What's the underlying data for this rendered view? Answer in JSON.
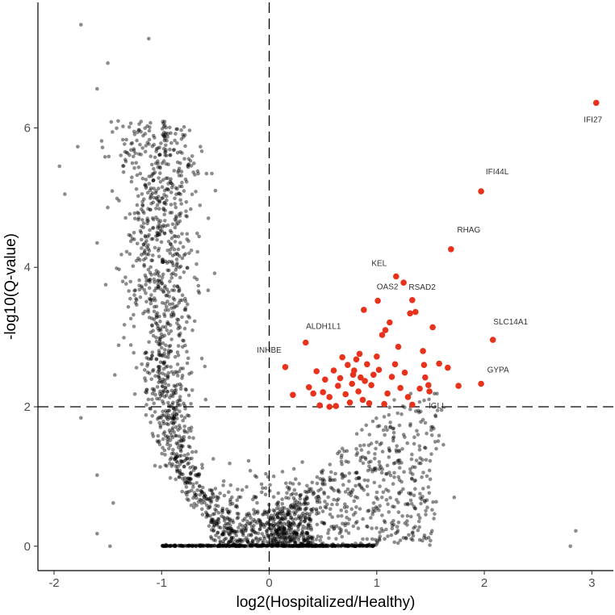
{
  "chart_data": {
    "type": "scatter",
    "title": "",
    "xlabel": "log2(Hospitalized/Healthy)",
    "ylabel": "-log10(Q-value)",
    "xlim": [
      -2.15,
      3.2
    ],
    "ylim": [
      -0.35,
      7.8
    ],
    "x_ticks": [
      -2,
      -1,
      0,
      1,
      2,
      3
    ],
    "y_ticks": [
      0,
      2,
      4,
      6
    ],
    "grid": false,
    "thresholds": {
      "x": 0,
      "y": 2
    },
    "colors": {
      "significant": "#e8321c",
      "other": "#000000",
      "other_opacity": 0.45
    },
    "labeled_genes": [
      {
        "name": "IFI27",
        "x": 3.04,
        "y": 6.36
      },
      {
        "name": "IFI44L",
        "x": 1.97,
        "y": 5.09
      },
      {
        "name": "RHAG",
        "x": 1.69,
        "y": 4.26
      },
      {
        "name": "KEL",
        "x": 1.18,
        "y": 3.87
      },
      {
        "name": "RSAD2",
        "x": 1.25,
        "y": 3.78
      },
      {
        "name": "OAS2",
        "x": 1.01,
        "y": 3.52
      },
      {
        "name": "ALDH1L1",
        "x": 0.34,
        "y": 2.92
      },
      {
        "name": "SLC14A1",
        "x": 2.08,
        "y": 2.96
      },
      {
        "name": "INHBE",
        "x": 0.15,
        "y": 2.57
      },
      {
        "name": "GYPA",
        "x": 1.97,
        "y": 2.33
      },
      {
        "name": "IGLL",
        "x": 1.57,
        "y": 2.0
      }
    ],
    "significant_points": [
      [
        0.22,
        2.17
      ],
      [
        0.37,
        2.28
      ],
      [
        0.41,
        2.19
      ],
      [
        0.44,
        2.51
      ],
      [
        0.47,
        2.02
      ],
      [
        0.5,
        2.21
      ],
      [
        0.52,
        2.39
      ],
      [
        0.56,
        2.14
      ],
      [
        0.6,
        2.52
      ],
      [
        0.62,
        2.01
      ],
      [
        0.64,
        2.3
      ],
      [
        0.66,
        2.41
      ],
      [
        0.68,
        2.71
      ],
      [
        0.71,
        2.18
      ],
      [
        0.73,
        2.6
      ],
      [
        0.75,
        2.06
      ],
      [
        0.77,
        2.33
      ],
      [
        0.79,
        2.52
      ],
      [
        0.81,
        2.68
      ],
      [
        0.83,
        2.22
      ],
      [
        0.85,
        2.42
      ],
      [
        0.87,
        2.1
      ],
      [
        0.89,
        2.37
      ],
      [
        0.91,
        2.61
      ],
      [
        0.88,
        3.39
      ],
      [
        0.93,
        2.05
      ],
      [
        0.95,
        2.31
      ],
      [
        0.97,
        2.46
      ],
      [
        1.0,
        2.72
      ],
      [
        1.02,
        2.53
      ],
      [
        1.05,
        3.03
      ],
      [
        1.07,
        2.04
      ],
      [
        1.1,
        2.19
      ],
      [
        1.12,
        3.21
      ],
      [
        1.14,
        2.43
      ],
      [
        1.17,
        2.61
      ],
      [
        1.2,
        2.86
      ],
      [
        1.22,
        2.27
      ],
      [
        1.26,
        2.49
      ],
      [
        1.29,
        2.14
      ],
      [
        1.31,
        3.34
      ],
      [
        1.33,
        2.03
      ],
      [
        1.36,
        3.36
      ],
      [
        1.4,
        2.26
      ],
      [
        1.43,
        2.8
      ],
      [
        1.45,
        2.42
      ],
      [
        1.48,
        2.31
      ],
      [
        1.52,
        3.14
      ],
      [
        1.58,
        2.62
      ],
      [
        1.66,
        2.56
      ],
      [
        1.33,
        3.53
      ],
      [
        1.08,
        3.1
      ],
      [
        0.78,
        2.46
      ],
      [
        0.56,
        2.0
      ],
      [
        0.84,
        2.76
      ],
      [
        1.44,
        2.6
      ],
      [
        1.76,
        2.3
      ],
      [
        1.49,
        2.22
      ]
    ]
  }
}
